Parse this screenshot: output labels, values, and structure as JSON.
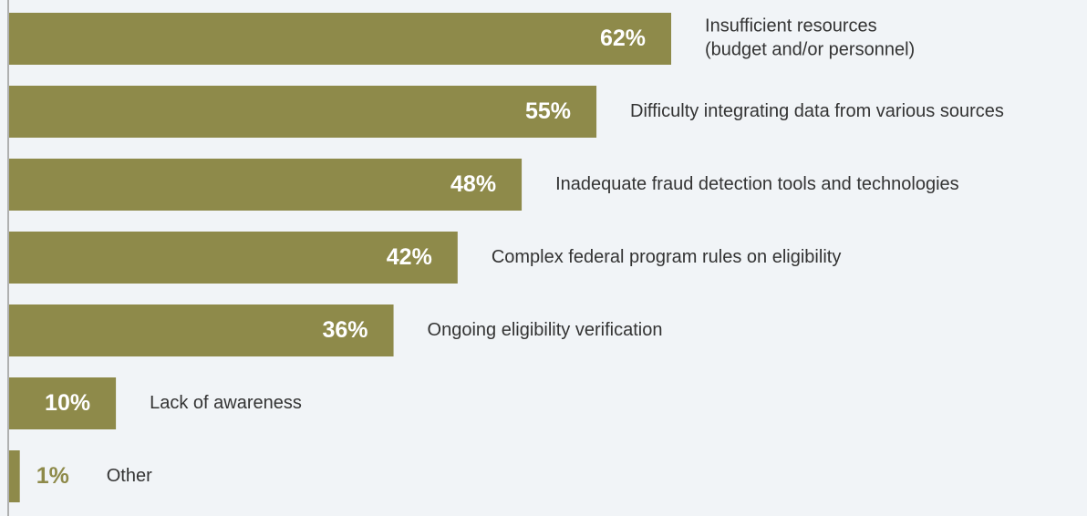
{
  "chart_data": {
    "type": "bar",
    "orientation": "horizontal",
    "categories": [
      "Insufficient resources\n(budget and/or personnel)",
      "Difficulty integrating data from various sources",
      "Inadequate fraud detection tools and technologies",
      "Complex federal program rules on eligibility",
      "Ongoing eligibility verification",
      "Lack of awareness",
      "Other"
    ],
    "values": [
      62,
      55,
      48,
      42,
      36,
      10,
      1
    ],
    "value_labels": [
      "62%",
      "55%",
      "48%",
      "42%",
      "36%",
      "10%",
      "1%"
    ],
    "color": "#8e8a4a",
    "xlim": [
      0,
      100
    ]
  }
}
